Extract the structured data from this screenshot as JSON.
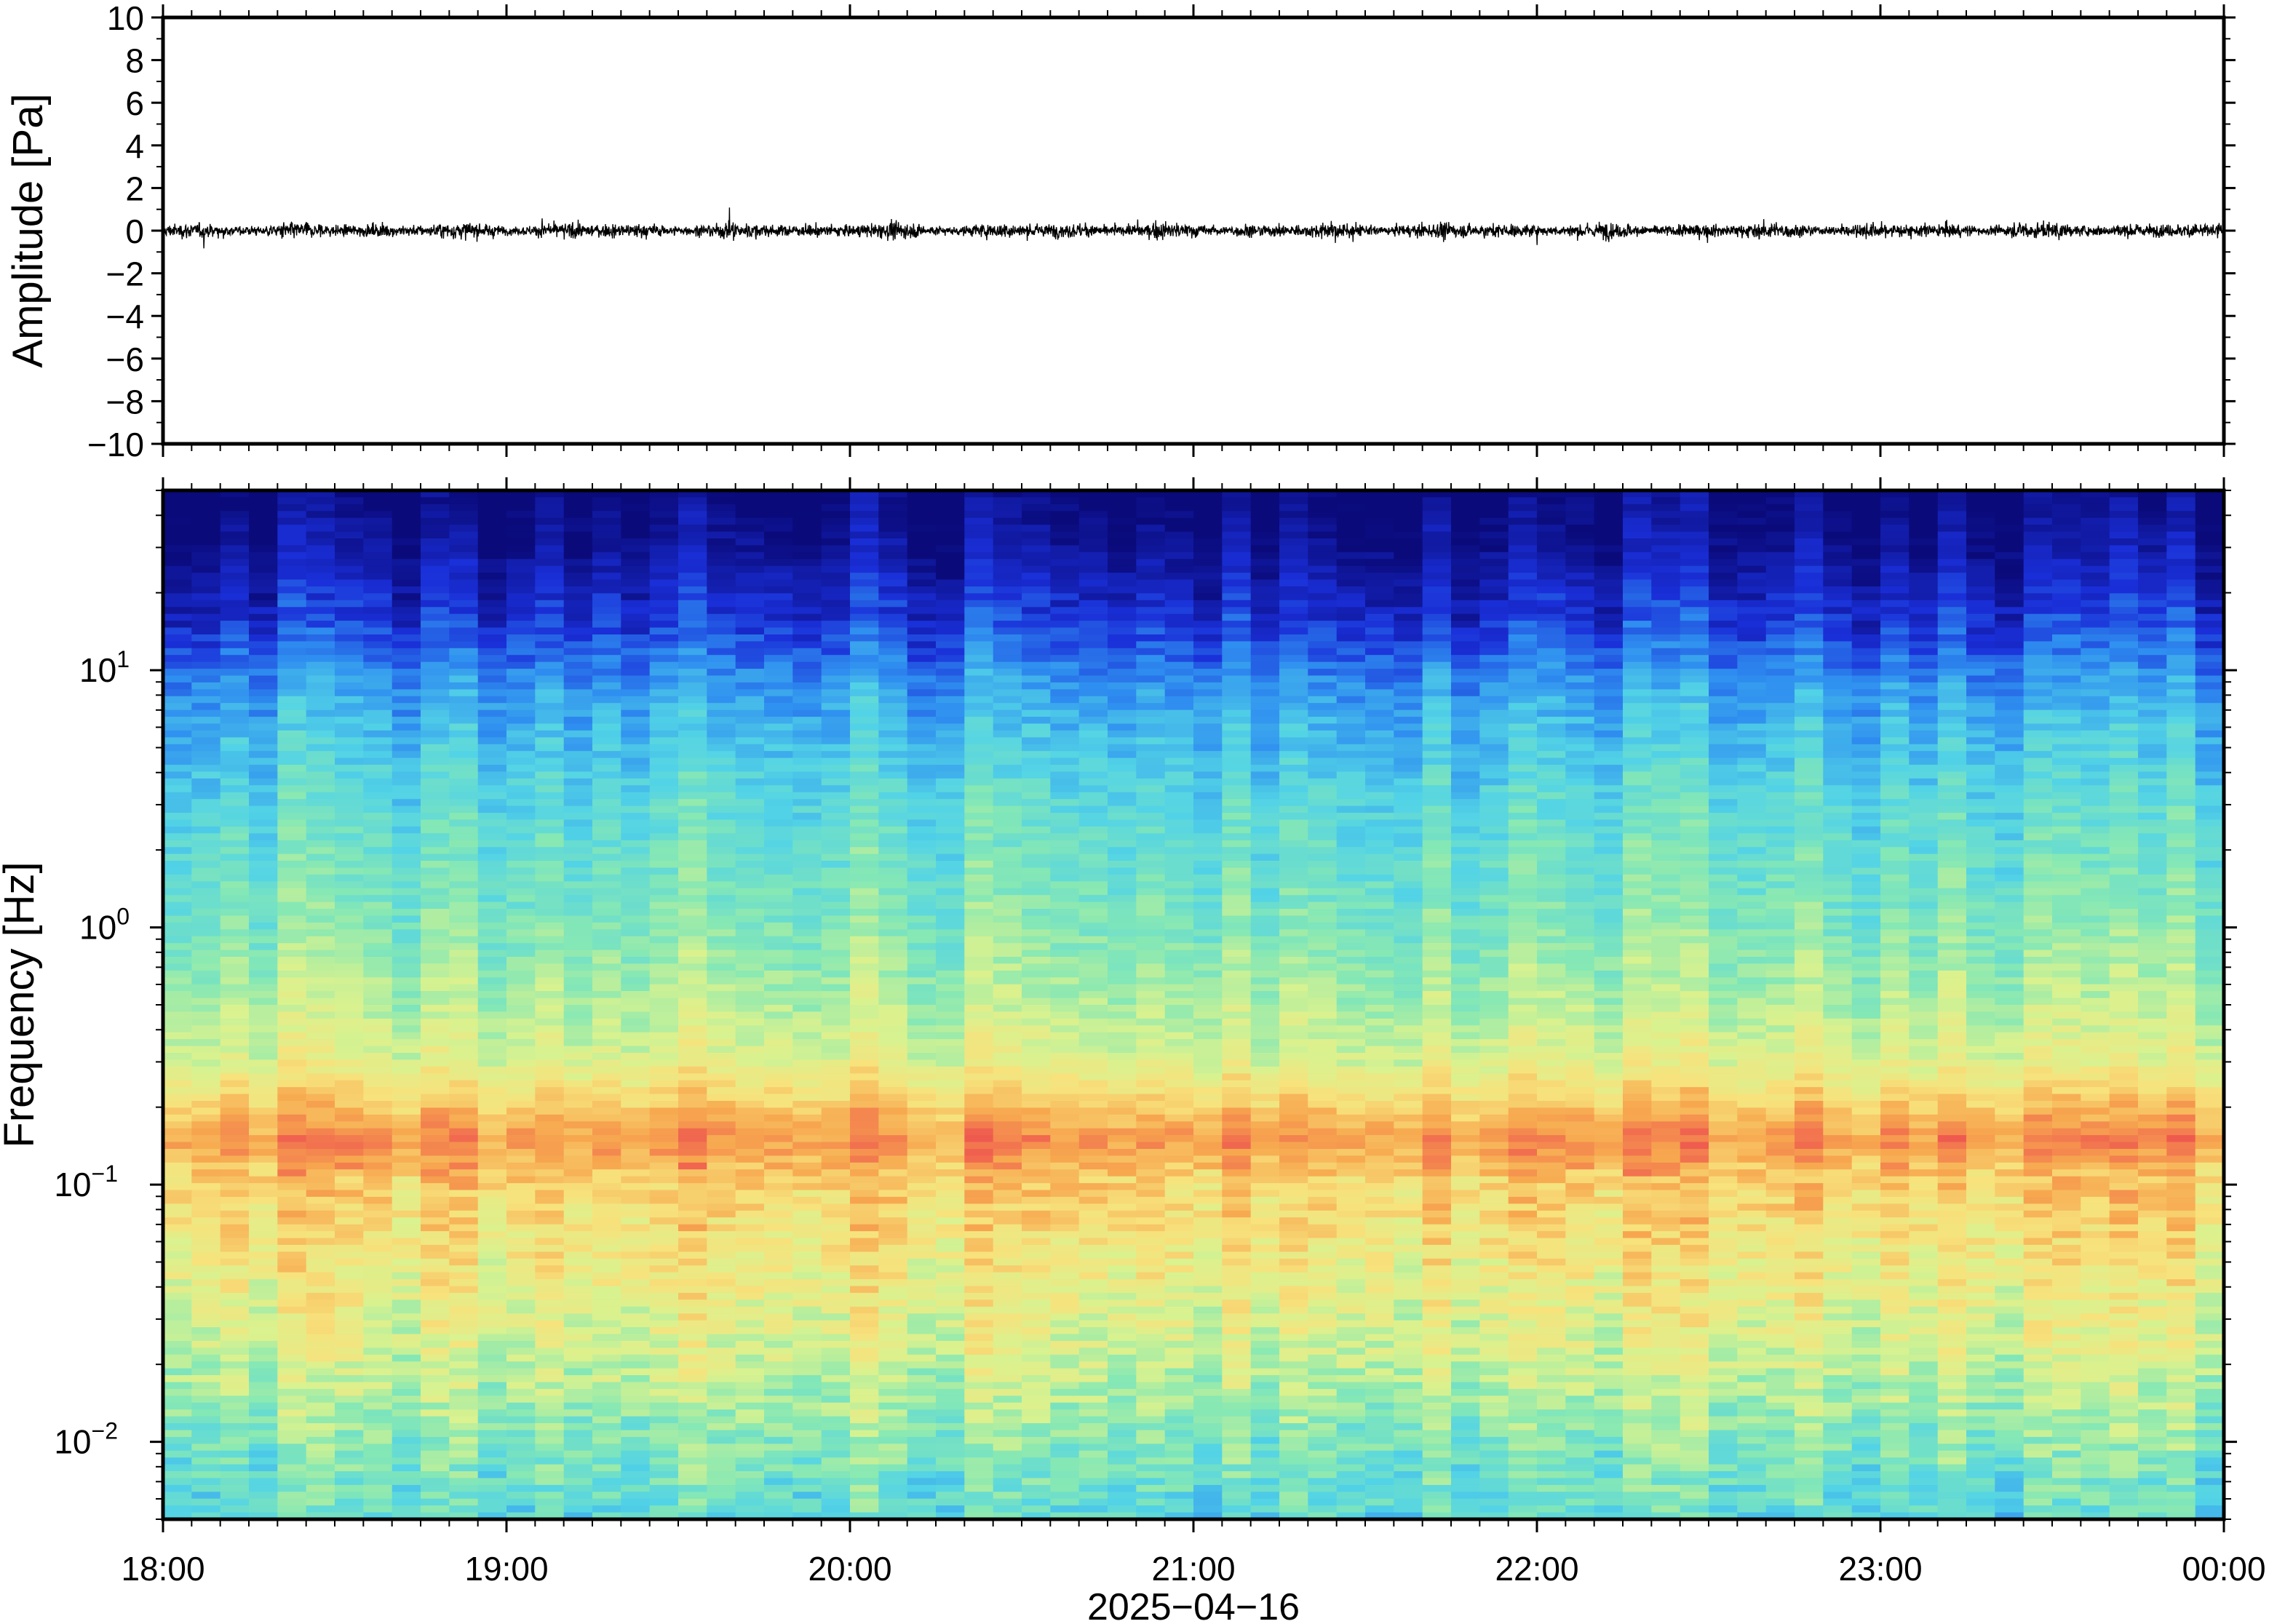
{
  "chart_data": [
    {
      "type": "line",
      "panel": "waveform",
      "ylabel": "Amplitude [Pa]",
      "ylim": [
        -10,
        10
      ],
      "yticks": [
        "10",
        "8",
        "6",
        "4",
        "2",
        "0",
        "−2",
        "−4",
        "−6",
        "−8",
        "−10"
      ],
      "ytick_values": [
        10,
        8,
        6,
        4,
        2,
        0,
        -2,
        -4,
        -6,
        -8,
        -10
      ],
      "xlim": [
        "18:00",
        "00:00"
      ],
      "trace_rms_pa": 0.25,
      "trace_peak_pa": 1.3,
      "trace_color": "#000000"
    },
    {
      "type": "heatmap",
      "panel": "spectrogram",
      "ylabel": "Frequency [Hz]",
      "yscale": "log",
      "ylim_hz": [
        0.005,
        50
      ],
      "yticks": [
        {
          "base": "10",
          "exp": "1",
          "value": 10
        },
        {
          "base": "10",
          "exp": "0",
          "value": 1
        },
        {
          "base": "10",
          "exp": "−1",
          "value": 0.1
        },
        {
          "base": "10",
          "exp": "−2",
          "value": 0.01
        }
      ],
      "xlabel": "2025−04−16",
      "xticks": [
        "18:00",
        "19:00",
        "20:00",
        "21:00",
        "22:00",
        "23:00",
        "00:00"
      ],
      "colormap": "spectral_r",
      "colormap_stops": [
        "#0a0a7a",
        "#1a2fd8",
        "#2f8ff0",
        "#52d3e6",
        "#86e8b4",
        "#d9f28f",
        "#f7e27c",
        "#f7a84f",
        "#ef5a4f"
      ],
      "frequency_profile": [
        {
          "f_hz": 50,
          "level": 0.0
        },
        {
          "f_hz": 30,
          "level": 0.05
        },
        {
          "f_hz": 15,
          "level": 0.15
        },
        {
          "f_hz": 8,
          "level": 0.3
        },
        {
          "f_hz": 3,
          "level": 0.42
        },
        {
          "f_hz": 1,
          "level": 0.5
        },
        {
          "f_hz": 0.5,
          "level": 0.58
        },
        {
          "f_hz": 0.3,
          "level": 0.66
        },
        {
          "f_hz": 0.2,
          "level": 0.82
        },
        {
          "f_hz": 0.15,
          "level": 0.92
        },
        {
          "f_hz": 0.1,
          "level": 0.8
        },
        {
          "f_hz": 0.05,
          "level": 0.72
        },
        {
          "f_hz": 0.02,
          "level": 0.62
        },
        {
          "f_hz": 0.01,
          "level": 0.5
        },
        {
          "f_hz": 0.005,
          "level": 0.42
        }
      ]
    }
  ]
}
